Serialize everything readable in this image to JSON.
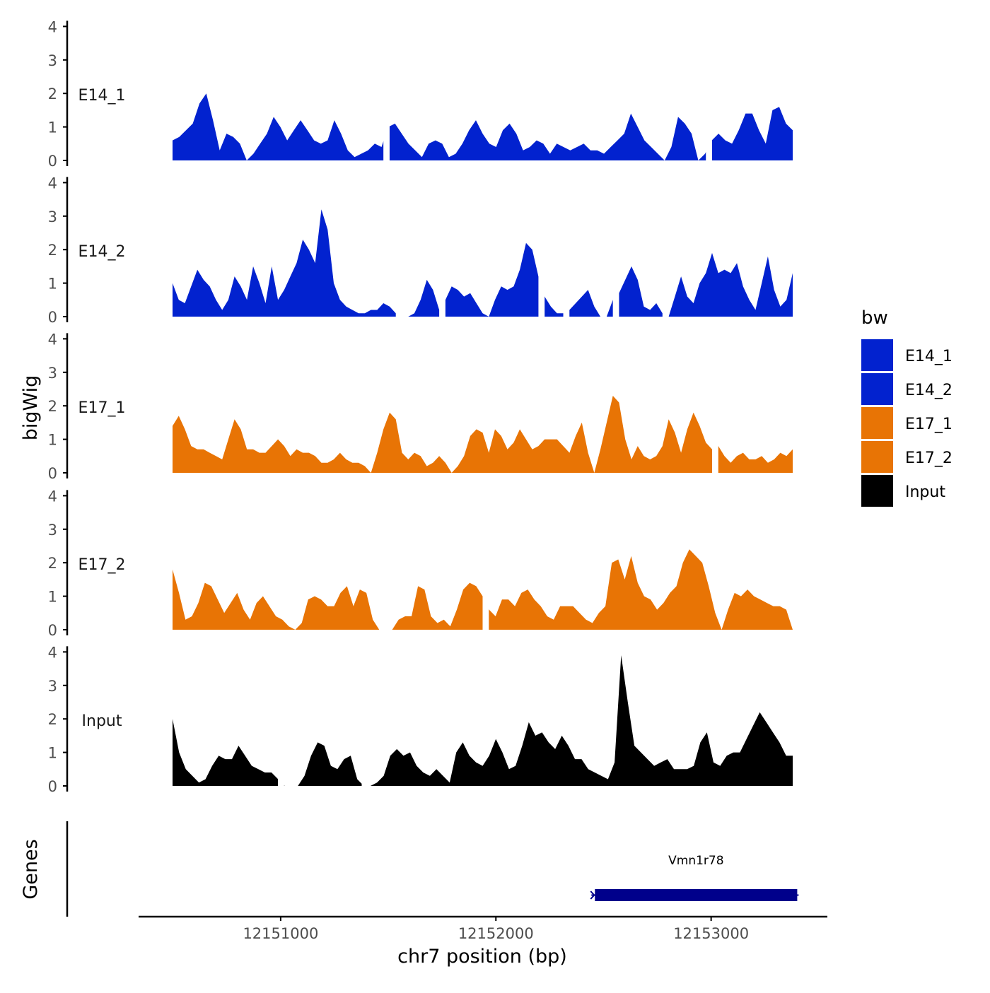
{
  "chart_data": {
    "type": "area",
    "title": "",
    "xlabel": "chr7 position (bp)",
    "ylabel": "bigWig",
    "genes_label": "Genes",
    "xlim": [
      12150340,
      12153540
    ],
    "x_ticks": [
      12151000,
      12152000,
      12153000
    ],
    "x_tick_labels": [
      "12151000",
      "12152000",
      "12153000"
    ],
    "ylim": [
      0,
      4.2
    ],
    "y_ticks": [
      0,
      1,
      2,
      3,
      4
    ],
    "y_tick_labels": [
      "0",
      "1",
      "2",
      "3",
      "4"
    ],
    "legend": {
      "title": "bw",
      "position": "right",
      "entries": [
        {
          "label": "E14_1",
          "color": "#0222cf"
        },
        {
          "label": "E14_2",
          "color": "#0222cf"
        },
        {
          "label": "E17_1",
          "color": "#e87405"
        },
        {
          "label": "E17_2",
          "color": "#e87405"
        },
        {
          "label": "Input",
          "color": "#000000"
        }
      ]
    },
    "x_start": 12150490,
    "x_step": 50,
    "series": [
      {
        "name": "E14_1",
        "color": "#0222cf",
        "values": [
          0.6,
          0.7,
          0.9,
          1.1,
          1.7,
          2.0,
          1.2,
          0.3,
          0.8,
          0.7,
          0.5,
          0.0,
          0.2,
          0.5,
          0.8,
          1.3,
          1.0,
          0.6,
          0.9,
          1.2,
          0.9,
          0.6,
          0.5,
          0.6,
          1.2,
          0.8,
          0.3,
          0.1,
          0.2,
          0.3,
          0.5,
          0.4,
          1.0,
          1.1,
          0.8,
          0.5,
          0.3,
          0.1,
          0.5,
          0.6,
          0.5,
          0.1,
          0.2,
          0.5,
          0.9,
          1.2,
          0.8,
          0.5,
          0.4,
          0.9,
          1.1,
          0.8,
          0.3,
          0.4,
          0.6,
          0.5,
          0.2,
          0.5,
          0.4,
          0.3,
          0.4,
          0.5,
          0.3,
          0.3,
          0.2,
          0.4,
          0.6,
          0.8,
          1.4,
          1.0,
          0.6,
          0.4,
          0.2,
          0.0,
          0.4,
          1.3,
          1.1,
          0.8,
          0.0,
          0.2,
          0.6,
          0.8,
          0.6,
          0.5,
          0.9,
          1.4,
          1.4,
          0.9,
          0.5,
          1.5,
          1.6,
          1.1,
          0.9
        ],
        "gaps": [
          [
            0.34,
            0.35
          ],
          [
            0.86,
            0.87
          ]
        ]
      },
      {
        "name": "E14_2",
        "color": "#0222cf",
        "values": [
          1.0,
          0.5,
          0.4,
          0.9,
          1.4,
          1.1,
          0.9,
          0.5,
          0.2,
          0.5,
          1.2,
          0.9,
          0.5,
          1.5,
          1.0,
          0.4,
          1.5,
          0.5,
          0.8,
          1.2,
          1.6,
          2.3,
          2.0,
          1.6,
          3.2,
          2.6,
          1.0,
          0.5,
          0.3,
          0.2,
          0.1,
          0.1,
          0.2,
          0.2,
          0.4,
          0.3,
          0.1,
          0.0,
          0.0,
          0.1,
          0.5,
          1.1,
          0.8,
          0.2,
          0.5,
          0.9,
          0.8,
          0.6,
          0.7,
          0.4,
          0.1,
          0.0,
          0.5,
          0.9,
          0.8,
          0.9,
          1.4,
          2.2,
          2.0,
          1.2,
          0.6,
          0.3,
          0.1,
          0.1,
          0.2,
          0.4,
          0.6,
          0.8,
          0.3,
          0.0,
          0.0,
          0.5,
          0.7,
          1.1,
          1.5,
          1.1,
          0.3,
          0.2,
          0.4,
          0.1,
          0.0,
          0.6,
          1.2,
          0.6,
          0.4,
          1.0,
          1.3,
          1.9,
          1.3,
          1.4,
          1.3,
          1.6,
          0.9,
          0.5,
          0.2,
          1.0,
          1.8,
          0.8,
          0.3,
          0.5,
          1.3
        ],
        "gaps": [
          [
            0.36,
            0.37
          ],
          [
            0.43,
            0.44
          ],
          [
            0.59,
            0.6
          ],
          [
            0.63,
            0.64
          ],
          [
            0.71,
            0.72
          ],
          [
            0.79,
            0.8
          ]
        ]
      },
      {
        "name": "E17_1",
        "color": "#e87405",
        "values": [
          1.4,
          1.7,
          1.3,
          0.8,
          0.7,
          0.7,
          0.6,
          0.5,
          0.4,
          1.0,
          1.6,
          1.3,
          0.7,
          0.7,
          0.6,
          0.6,
          0.8,
          1.0,
          0.8,
          0.5,
          0.7,
          0.6,
          0.6,
          0.5,
          0.3,
          0.3,
          0.4,
          0.6,
          0.4,
          0.3,
          0.3,
          0.2,
          0.0,
          0.6,
          1.3,
          1.8,
          1.6,
          0.6,
          0.4,
          0.6,
          0.5,
          0.2,
          0.3,
          0.5,
          0.3,
          0.0,
          0.2,
          0.5,
          1.1,
          1.3,
          1.2,
          0.6,
          1.3,
          1.1,
          0.7,
          0.9,
          1.3,
          1.0,
          0.7,
          0.8,
          1.0,
          1.0,
          1.0,
          0.8,
          0.6,
          1.1,
          1.5,
          0.6,
          0.0,
          0.7,
          1.5,
          2.3,
          2.1,
          1.0,
          0.4,
          0.8,
          0.5,
          0.4,
          0.5,
          0.8,
          1.6,
          1.2,
          0.6,
          1.3,
          1.8,
          1.4,
          0.9,
          0.7,
          0.8,
          0.5,
          0.3,
          0.5,
          0.6,
          0.4,
          0.4,
          0.5,
          0.3,
          0.4,
          0.6,
          0.5,
          0.7
        ],
        "gaps": [
          [
            0.87,
            0.88
          ]
        ]
      },
      {
        "name": "E17_2",
        "color": "#e87405",
        "values": [
          1.8,
          1.1,
          0.3,
          0.4,
          0.8,
          1.4,
          1.3,
          0.9,
          0.5,
          0.8,
          1.1,
          0.6,
          0.3,
          0.8,
          1.0,
          0.7,
          0.4,
          0.3,
          0.1,
          0.0,
          0.2,
          0.9,
          1.0,
          0.9,
          0.7,
          0.7,
          1.1,
          1.3,
          0.7,
          1.2,
          1.1,
          0.3,
          0.0,
          0.0,
          0.0,
          0.3,
          0.4,
          0.4,
          1.3,
          1.2,
          0.4,
          0.2,
          0.3,
          0.1,
          0.6,
          1.2,
          1.4,
          1.3,
          1.0,
          0.6,
          0.4,
          0.9,
          0.9,
          0.7,
          1.1,
          1.2,
          0.9,
          0.7,
          0.4,
          0.3,
          0.7,
          0.7,
          0.7,
          0.5,
          0.3,
          0.2,
          0.5,
          0.7,
          2.0,
          2.1,
          1.5,
          2.2,
          1.4,
          1.0,
          0.9,
          0.6,
          0.8,
          1.1,
          1.3,
          2.0,
          2.4,
          2.2,
          2.0,
          1.3,
          0.5,
          0.0,
          0.6,
          1.1,
          1.0,
          1.2,
          1.0,
          0.9,
          0.8,
          0.7,
          0.7,
          0.6,
          0.0
        ],
        "gaps": [
          [
            0.5,
            0.51
          ]
        ]
      },
      {
        "name": "Input",
        "color": "#000000",
        "values": [
          2.0,
          1.0,
          0.5,
          0.3,
          0.1,
          0.2,
          0.6,
          0.9,
          0.8,
          0.8,
          1.2,
          0.9,
          0.6,
          0.5,
          0.4,
          0.4,
          0.2,
          0.0,
          0.0,
          0.0,
          0.3,
          0.9,
          1.3,
          1.2,
          0.6,
          0.5,
          0.8,
          0.9,
          0.2,
          0.0,
          0.0,
          0.1,
          0.3,
          0.9,
          1.1,
          0.9,
          1.0,
          0.6,
          0.4,
          0.3,
          0.5,
          0.3,
          0.1,
          1.0,
          1.3,
          0.9,
          0.7,
          0.6,
          0.9,
          1.4,
          1.0,
          0.5,
          0.6,
          1.2,
          1.9,
          1.5,
          1.6,
          1.3,
          1.1,
          1.5,
          1.2,
          0.8,
          0.8,
          0.5,
          0.4,
          0.3,
          0.2,
          0.7,
          3.9,
          2.5,
          1.2,
          1.0,
          0.8,
          0.6,
          0.7,
          0.8,
          0.5,
          0.5,
          0.5,
          0.6,
          1.3,
          1.6,
          0.7,
          0.6,
          0.9,
          1.0,
          1.0,
          1.4,
          1.8,
          2.2,
          1.9,
          1.6,
          1.3,
          0.9,
          0.9
        ],
        "gaps": [
          [
            0.17,
            0.18
          ],
          [
            0.305,
            0.315
          ]
        ]
      }
    ],
    "genes": [
      {
        "name": "Vmn1r78",
        "start": 12152460,
        "end": 12153400
      }
    ]
  }
}
